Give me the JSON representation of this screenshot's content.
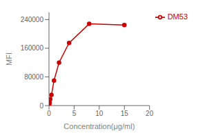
{
  "chart_data": {
    "type": "line",
    "x": [
      0.0,
      0.06,
      0.12,
      0.25,
      0.5,
      1.0,
      2.0,
      4.0,
      8.0,
      15.0
    ],
    "series": [
      {
        "name": "DM53",
        "color": "#cc0000",
        "marker": "circle",
        "values": [
          0,
          3000,
          8000,
          18000,
          30000,
          70000,
          120000,
          175000,
          228000,
          225000
        ]
      }
    ],
    "xlabel": "Concentration(μg/ml)",
    "ylabel": "MFI",
    "xlim": [
      0,
      20
    ],
    "ylim": [
      0,
      260000
    ],
    "xticks": [
      0,
      5,
      10,
      15,
      20
    ],
    "yticks": [
      0,
      80000,
      160000,
      240000
    ],
    "grid": false,
    "legend": "upper right"
  }
}
